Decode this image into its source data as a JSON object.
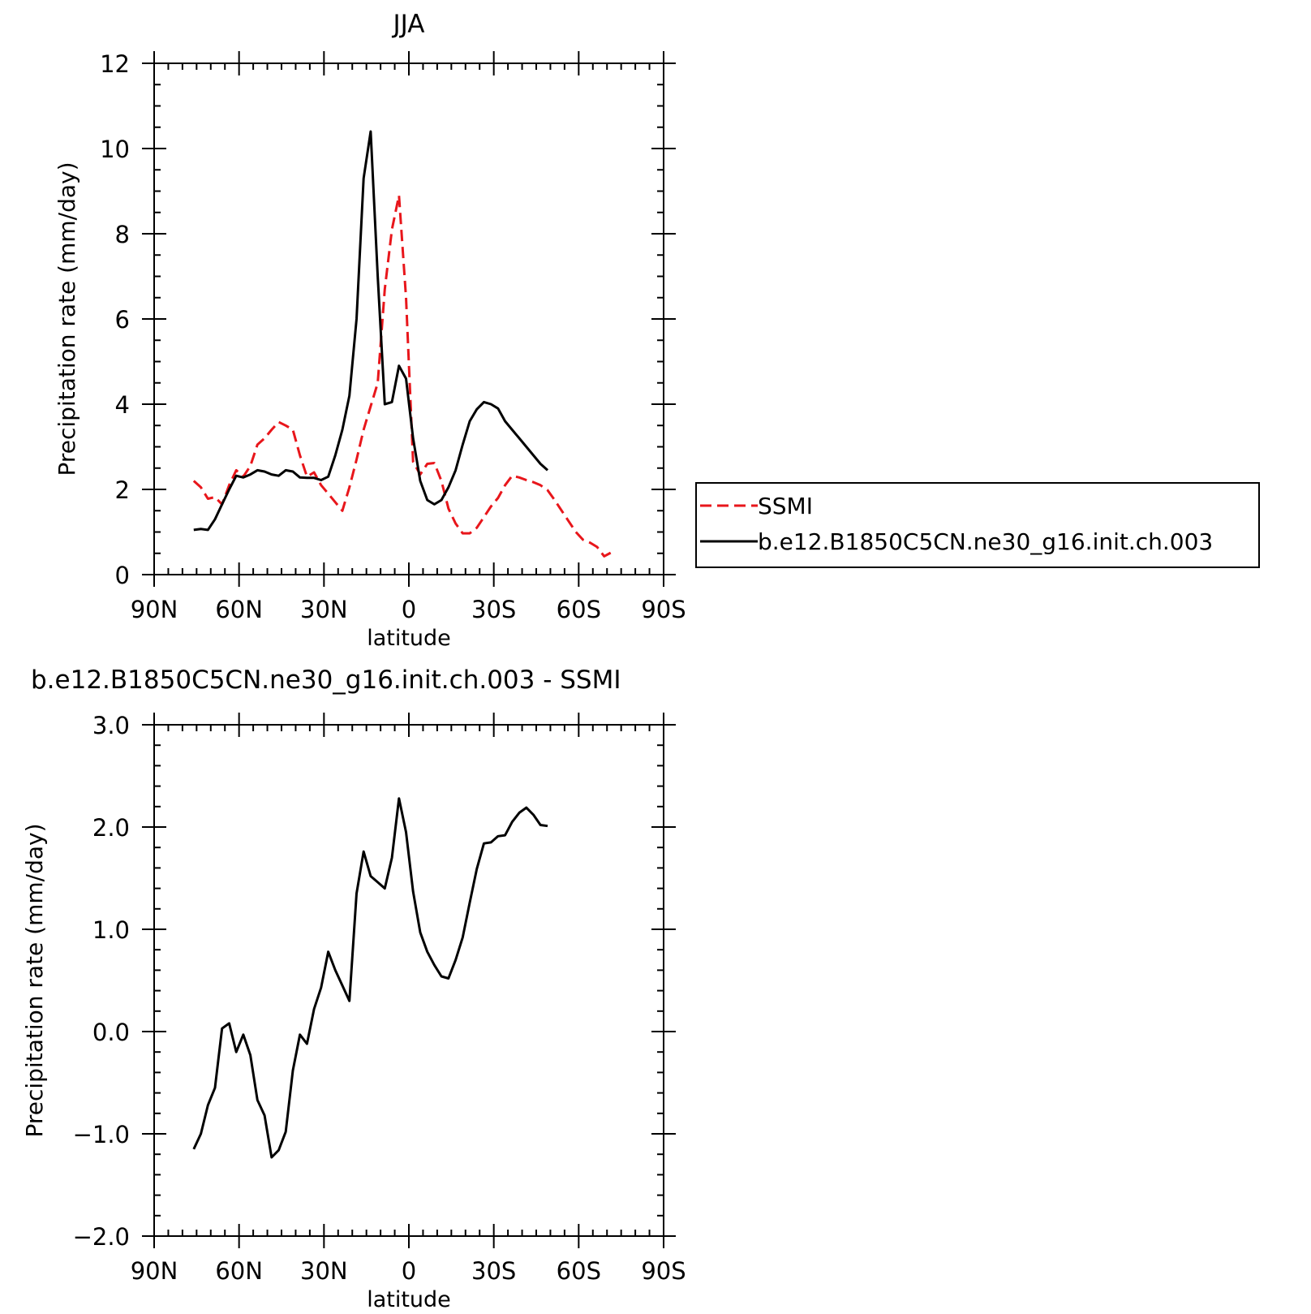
{
  "chart_data": [
    {
      "type": "line",
      "title": "JJA",
      "xlabel": "latitude",
      "ylabel": "Precipitation rate (mm/day)",
      "xlim": [
        90,
        -90
      ],
      "ylim": [
        0,
        12
      ],
      "x_ticks": [
        {
          "value": 90,
          "label": "90N"
        },
        {
          "value": 60,
          "label": "60N"
        },
        {
          "value": 30,
          "label": "30N"
        },
        {
          "value": 0,
          "label": "0"
        },
        {
          "value": -30,
          "label": "30S"
        },
        {
          "value": -60,
          "label": "60S"
        },
        {
          "value": -90,
          "label": "90S"
        }
      ],
      "y_ticks": [
        {
          "value": 0,
          "label": "0"
        },
        {
          "value": 2,
          "label": "2"
        },
        {
          "value": 4,
          "label": "4"
        },
        {
          "value": 6,
          "label": "6"
        },
        {
          "value": 8,
          "label": "8"
        },
        {
          "value": 10,
          "label": "10"
        },
        {
          "value": 12,
          "label": "12"
        }
      ],
      "legend": {
        "placement": "right"
      },
      "series": [
        {
          "name": "SSMI",
          "color": "#e8161b",
          "dash": "dashed",
          "points": [
            [
              76,
              2.2
            ],
            [
              73.5,
              2.05
            ],
            [
              71,
              1.78
            ],
            [
              68.5,
              1.82
            ],
            [
              66,
              1.65
            ],
            [
              63.5,
              2.1
            ],
            [
              61,
              2.45
            ],
            [
              58.5,
              2.3
            ],
            [
              56,
              2.55
            ],
            [
              53.5,
              3.05
            ],
            [
              51,
              3.2
            ],
            [
              48.5,
              3.4
            ],
            [
              46,
              3.58
            ],
            [
              43.5,
              3.5
            ],
            [
              41,
              3.4
            ],
            [
              38.5,
              2.8
            ],
            [
              36,
              2.3
            ],
            [
              33.5,
              2.4
            ],
            [
              31,
              2.1
            ],
            [
              28.5,
              1.9
            ],
            [
              26,
              1.7
            ],
            [
              23.5,
              1.5
            ],
            [
              21,
              2.05
            ],
            [
              18.5,
              2.7
            ],
            [
              16,
              3.4
            ],
            [
              13.5,
              3.95
            ],
            [
              11,
              4.5
            ],
            [
              8.5,
              6.7
            ],
            [
              6,
              8.1
            ],
            [
              3.5,
              8.9
            ],
            [
              1,
              6.5
            ],
            [
              -1.5,
              2.65
            ],
            [
              -4,
              2.35
            ],
            [
              -6.5,
              2.6
            ],
            [
              -9,
              2.62
            ],
            [
              -11.5,
              2.2
            ],
            [
              -14,
              1.55
            ],
            [
              -16.5,
              1.2
            ],
            [
              -19,
              0.97
            ],
            [
              -21.5,
              0.97
            ],
            [
              -24,
              1.1
            ],
            [
              -26.5,
              1.35
            ],
            [
              -29,
              1.6
            ],
            [
              -31.5,
              1.8
            ],
            [
              -34,
              2.1
            ],
            [
              -36.5,
              2.32
            ],
            [
              -39,
              2.28
            ],
            [
              -41.5,
              2.22
            ],
            [
              -44,
              2.17
            ],
            [
              -46.5,
              2.1
            ],
            [
              -49,
              1.98
            ],
            [
              -51.5,
              1.75
            ],
            [
              -54,
              1.5
            ],
            [
              -56.5,
              1.25
            ],
            [
              -59,
              1.0
            ],
            [
              -61.5,
              0.82
            ],
            [
              -64,
              0.75
            ],
            [
              -66.5,
              0.65
            ],
            [
              -69,
              0.43
            ],
            [
              -71.5,
              0.52
            ]
          ]
        },
        {
          "name": "b.e12.B1850C5CN.ne30_g16.init.ch.003",
          "color": "#000000",
          "dash": "solid",
          "points": [
            [
              76,
              1.05
            ],
            [
              73.5,
              1.07
            ],
            [
              71,
              1.05
            ],
            [
              68.5,
              1.3
            ],
            [
              66,
              1.65
            ],
            [
              63.5,
              2.0
            ],
            [
              61,
              2.32
            ],
            [
              58.5,
              2.28
            ],
            [
              56,
              2.35
            ],
            [
              53.5,
              2.45
            ],
            [
              51,
              2.42
            ],
            [
              48.5,
              2.35
            ],
            [
              46,
              2.32
            ],
            [
              43.5,
              2.45
            ],
            [
              41,
              2.42
            ],
            [
              38.5,
              2.28
            ],
            [
              36,
              2.27
            ],
            [
              33.5,
              2.27
            ],
            [
              31,
              2.22
            ],
            [
              28.5,
              2.3
            ],
            [
              26,
              2.8
            ],
            [
              23.5,
              3.4
            ],
            [
              21,
              4.2
            ],
            [
              18.5,
              6.0
            ],
            [
              16,
              9.3
            ],
            [
              13.5,
              10.4
            ],
            [
              11,
              7.0
            ],
            [
              8.5,
              4.0
            ],
            [
              6,
              4.05
            ],
            [
              3.5,
              4.9
            ],
            [
              1,
              4.6
            ],
            [
              -1.5,
              3.2
            ],
            [
              -4,
              2.2
            ],
            [
              -6.5,
              1.75
            ],
            [
              -9,
              1.65
            ],
            [
              -11.5,
              1.75
            ],
            [
              -14,
              2.05
            ],
            [
              -16.5,
              2.45
            ],
            [
              -19,
              3.05
            ],
            [
              -21.5,
              3.6
            ],
            [
              -24,
              3.88
            ],
            [
              -26.5,
              4.05
            ],
            [
              -29,
              4.0
            ],
            [
              -31.5,
              3.9
            ],
            [
              -34,
              3.6
            ],
            [
              -36.5,
              3.4
            ],
            [
              -39,
              3.2
            ],
            [
              -41.5,
              3.0
            ],
            [
              -44,
              2.8
            ],
            [
              -46.5,
              2.6
            ],
            [
              -49,
              2.45
            ]
          ]
        }
      ]
    },
    {
      "type": "line",
      "title": "b.e12.B1850C5CN.ne30_g16.init.ch.003 - SSMI",
      "xlabel": "latitude",
      "ylabel": "Precipitation rate (mm/day)",
      "xlim": [
        90,
        -90
      ],
      "ylim": [
        -2,
        3
      ],
      "x_ticks": [
        {
          "value": 90,
          "label": "90N"
        },
        {
          "value": 60,
          "label": "60N"
        },
        {
          "value": 30,
          "label": "30N"
        },
        {
          "value": 0,
          "label": "0"
        },
        {
          "value": -30,
          "label": "30S"
        },
        {
          "value": -60,
          "label": "60S"
        },
        {
          "value": -90,
          "label": "90S"
        }
      ],
      "y_ticks": [
        {
          "value": -2,
          "label": "−2.0"
        },
        {
          "value": -1,
          "label": "−1.0"
        },
        {
          "value": 0,
          "label": "0.0"
        },
        {
          "value": 1,
          "label": "1.0"
        },
        {
          "value": 2,
          "label": "2.0"
        },
        {
          "value": 3,
          "label": "3.0"
        }
      ],
      "series": [
        {
          "color": "#000000",
          "dash": "solid",
          "points": [
            [
              76,
              -1.15
            ],
            [
              73.5,
              -1.0
            ],
            [
              71,
              -0.72
            ],
            [
              68.5,
              -0.55
            ],
            [
              66,
              0.03
            ],
            [
              63.5,
              0.08
            ],
            [
              61,
              -0.2
            ],
            [
              58.5,
              -0.03
            ],
            [
              56,
              -0.23
            ],
            [
              53.5,
              -0.67
            ],
            [
              51,
              -0.82
            ],
            [
              48.5,
              -1.23
            ],
            [
              46,
              -1.16
            ],
            [
              43.5,
              -0.98
            ],
            [
              41,
              -0.38
            ],
            [
              38.5,
              -0.03
            ],
            [
              36,
              -0.12
            ],
            [
              33.5,
              0.22
            ],
            [
              31,
              0.43
            ],
            [
              28.5,
              0.78
            ],
            [
              26,
              0.6
            ],
            [
              23.5,
              0.45
            ],
            [
              21,
              0.3
            ],
            [
              18.5,
              1.35
            ],
            [
              16,
              1.76
            ],
            [
              13.5,
              1.52
            ],
            [
              11,
              1.46
            ],
            [
              8.5,
              1.4
            ],
            [
              6,
              1.7
            ],
            [
              3.5,
              2.28
            ],
            [
              1,
              1.95
            ],
            [
              -1.5,
              1.37
            ],
            [
              -4,
              0.97
            ],
            [
              -6.5,
              0.78
            ],
            [
              -9,
              0.65
            ],
            [
              -11.5,
              0.54
            ],
            [
              -14,
              0.52
            ],
            [
              -16.5,
              0.7
            ],
            [
              -19,
              0.92
            ],
            [
              -21.5,
              1.26
            ],
            [
              -24,
              1.59
            ],
            [
              -26.5,
              1.84
            ],
            [
              -29,
              1.85
            ],
            [
              -31.5,
              1.91
            ],
            [
              -34,
              1.92
            ],
            [
              -36.5,
              2.05
            ],
            [
              -39,
              2.14
            ],
            [
              -41.5,
              2.19
            ],
            [
              -44,
              2.12
            ],
            [
              -46.5,
              2.02
            ],
            [
              -49,
              2.01
            ]
          ]
        }
      ]
    }
  ]
}
